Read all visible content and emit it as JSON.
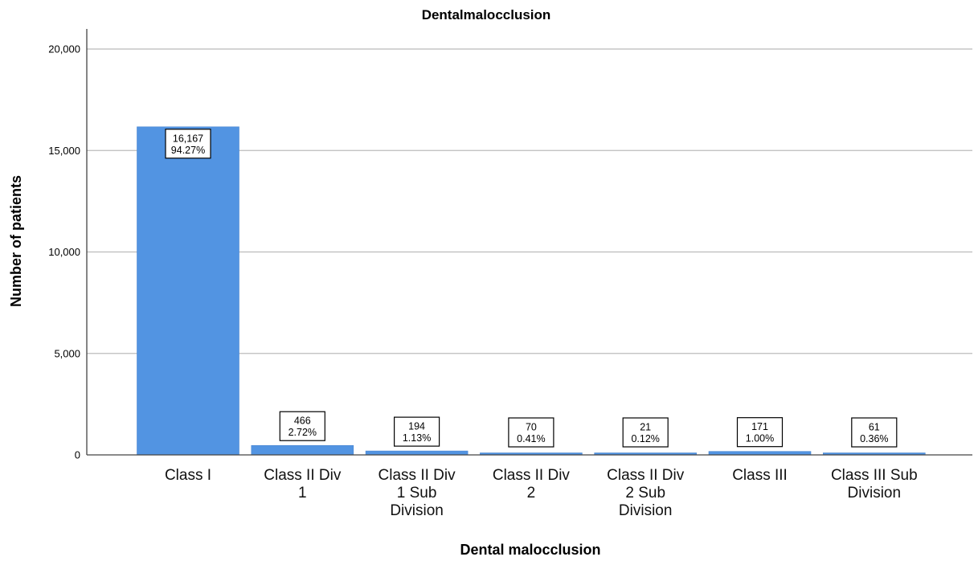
{
  "chart_data": {
    "type": "bar",
    "title": "Dentalmalocclusion",
    "xlabel": "Dental malocclusion",
    "ylabel": "Number of patients",
    "categories": [
      [
        "Class I"
      ],
      [
        "Class II Div",
        "1"
      ],
      [
        "Class II Div",
        "1 Sub",
        "Division"
      ],
      [
        "Class II Div",
        "2"
      ],
      [
        "Class II Div",
        "2 Sub",
        "Division"
      ],
      [
        "Class III"
      ],
      [
        "Class III Sub",
        "Division"
      ]
    ],
    "values": [
      16167,
      466,
      194,
      70,
      21,
      171,
      61
    ],
    "value_labels": [
      "16,167",
      "466",
      "194",
      "70",
      "21",
      "171",
      "61"
    ],
    "percent_labels": [
      "94.27%",
      "2.72%",
      "1.13%",
      "0.41%",
      "0.12%",
      "1.00%",
      "0.36%"
    ],
    "ylim": [
      0,
      21000
    ],
    "yticks": [
      0,
      5000,
      10000,
      15000,
      20000
    ],
    "ytick_labels": [
      "0",
      "5,000",
      "10,000",
      "15,000",
      "20,000"
    ],
    "grid": true,
    "legend": "none",
    "bar_color": "#5294E2",
    "grid_color": "#BBBBBB"
  }
}
